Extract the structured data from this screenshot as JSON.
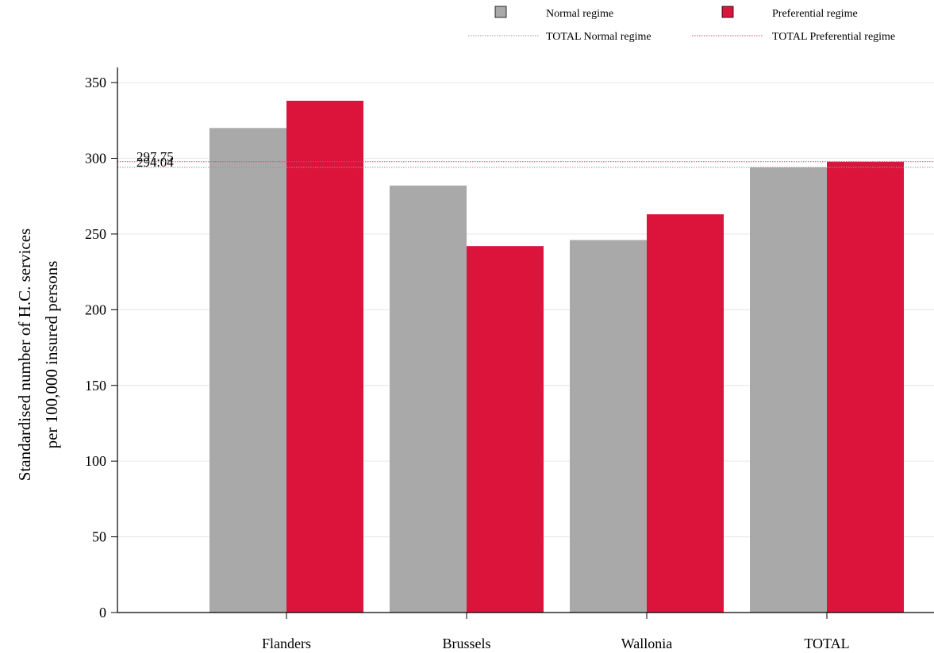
{
  "colors": {
    "normal": "#a9a9a9",
    "preferential": "#dc143c",
    "grid": "#e6e6e6",
    "axis": "#000000",
    "ref_normal": "#999999",
    "ref_preferential": "#c0506e"
  },
  "legend": {
    "normal": "Normal regime",
    "preferential": "Preferential regime",
    "total_normal": "TOTAL Normal regime",
    "total_preferential": "TOTAL Preferential regime"
  },
  "chart_data": {
    "type": "bar",
    "title": "",
    "xlabel": "",
    "ylabel": [
      "Standardised number of H.C. services",
      "per 100,000 insured persons"
    ],
    "categories": [
      "Flanders",
      "Brussels",
      "Wallonia",
      "TOTAL"
    ],
    "series": [
      {
        "name": "Normal regime",
        "values": [
          320,
          282,
          246,
          294.04
        ]
      },
      {
        "name": "Preferential regime",
        "values": [
          338,
          242,
          263,
          297.75
        ]
      }
    ],
    "reference_lines": [
      {
        "name": "TOTAL Normal regime",
        "value": 294.04,
        "label": "294.04"
      },
      {
        "name": "TOTAL Preferential regime",
        "value": 297.75,
        "label": "297.75"
      }
    ],
    "ylim": [
      0,
      360
    ],
    "yticks": [
      0,
      50,
      100,
      150,
      200,
      250,
      300,
      350
    ],
    "grid": true,
    "legend_position": "top-right"
  }
}
